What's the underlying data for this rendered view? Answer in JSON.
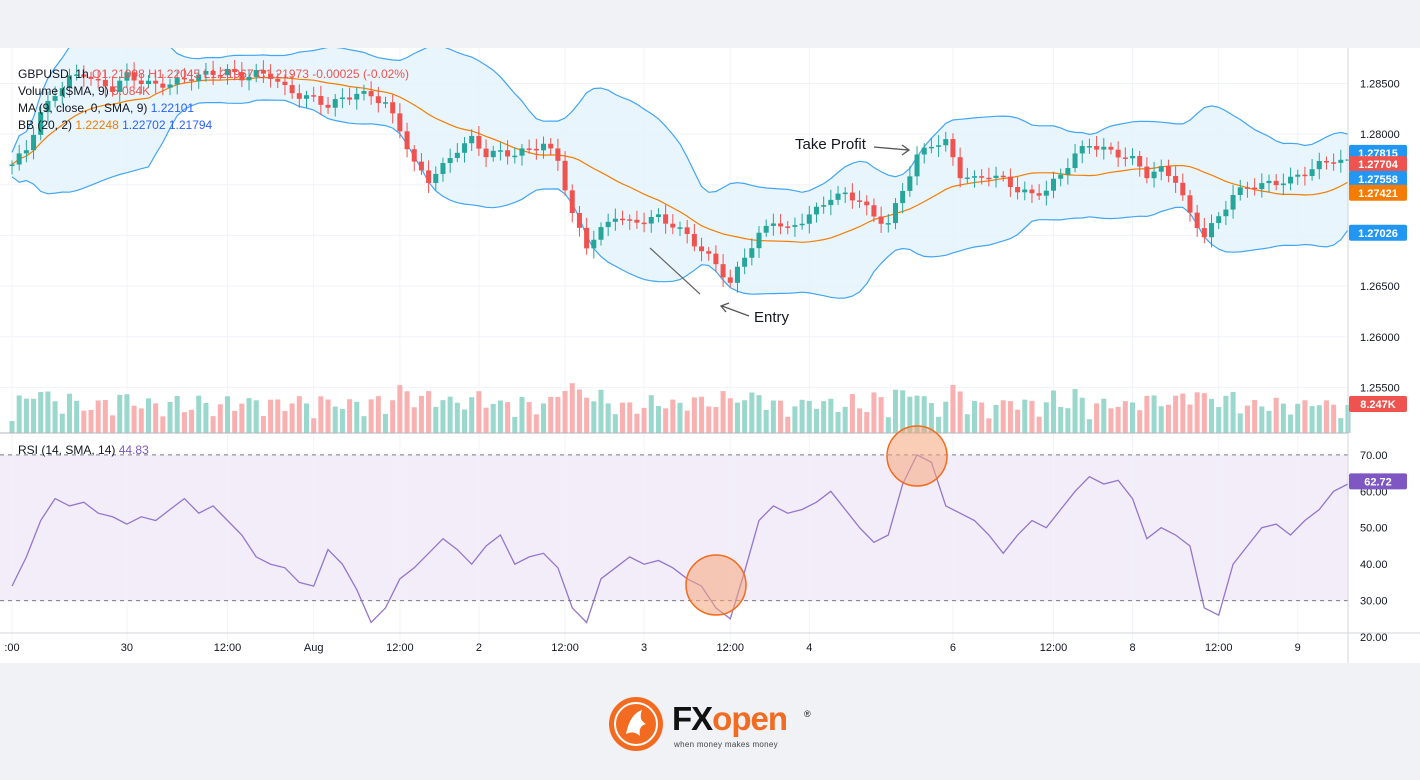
{
  "legend": {
    "symbol": "GBPUSD, 1h",
    "ohlc": "O1.21998 H1.22045 L1.21967 C1.21973 -0.00025 (-0.02%)",
    "volume": "Volume (SMA, 9)",
    "volume_value": "5.084K",
    "ma": "MA (9, close, 0, SMA, 9)",
    "ma_value": "1.22101",
    "bb": "BB (20, 2)",
    "bb_mid": "1.22248",
    "bb_up": "1.22702",
    "bb_low": "1.21794",
    "rsi": "RSI (14, SMA, 14)",
    "rsi_value": "44.83"
  },
  "annotations": {
    "take_profit": "Take Profit",
    "entry": "Entry"
  },
  "brand": {
    "name_a": "FX",
    "name_b": "open",
    "registered": "®",
    "tagline": "when money makes money"
  },
  "chart_data": [
    {
      "type": "candlestick",
      "title": "GBPUSD, 1h",
      "price_ticks": [
        "1.28500",
        "1.28000",
        "1.27500",
        "1.27000",
        "1.26500",
        "1.26000",
        "1.25500"
      ],
      "price_ticks_values": [
        1.285,
        1.28,
        1.275,
        1.27,
        1.265,
        1.26,
        1.255
      ],
      "ylim": [
        1.2505,
        1.2885
      ],
      "price_labels": [
        {
          "text": "1.27815",
          "value": 1.27815,
          "color": "#2196f3"
        },
        {
          "text": "1.27704",
          "value": 1.27704,
          "color": "#ef5350"
        },
        {
          "text": "1.27558",
          "value": 1.27558,
          "color": "#2196f3"
        },
        {
          "text": "1.27421",
          "value": 1.27421,
          "color": "#f57c00"
        },
        {
          "text": "1.27026",
          "value": 1.27026,
          "color": "#2196f3"
        }
      ],
      "volume_label": {
        "text": "8.247K",
        "color": "#ef5350"
      },
      "x_ticks": [
        ":00",
        "30",
        "12:00",
        "Aug",
        "12:00",
        "2",
        "12:00",
        "3",
        "12:00",
        "4",
        "6",
        "12:00",
        "8",
        "12:00",
        "9"
      ],
      "x_ticks_index": [
        0,
        16,
        30,
        42,
        54,
        65,
        77,
        88,
        100,
        111,
        131,
        145,
        156,
        168,
        179
      ],
      "bollinger": {
        "period": 20,
        "stddev": 2
      },
      "close_path": [
        [
          0,
          1.277
        ],
        [
          2,
          1.2785
        ],
        [
          4,
          1.282
        ],
        [
          6,
          1.284
        ],
        [
          8,
          1.2855
        ],
        [
          10,
          1.286
        ],
        [
          12,
          1.285
        ],
        [
          14,
          1.2845
        ],
        [
          16,
          1.2858
        ],
        [
          18,
          1.2852
        ],
        [
          20,
          1.2848
        ],
        [
          22,
          1.285
        ],
        [
          24,
          1.2854
        ],
        [
          26,
          1.2858
        ],
        [
          28,
          1.286
        ],
        [
          30,
          1.2862
        ],
        [
          32,
          1.2856
        ],
        [
          34,
          1.286
        ],
        [
          36,
          1.2858
        ],
        [
          38,
          1.2845
        ],
        [
          40,
          1.2838
        ],
        [
          42,
          1.2835
        ],
        [
          44,
          1.2828
        ],
        [
          46,
          1.2835
        ],
        [
          48,
          1.284
        ],
        [
          50,
          1.2838
        ],
        [
          52,
          1.283
        ],
        [
          54,
          1.2805
        ],
        [
          56,
          1.277
        ],
        [
          58,
          1.2755
        ],
        [
          60,
          1.2768
        ],
        [
          62,
          1.2785
        ],
        [
          64,
          1.2795
        ],
        [
          66,
          1.278
        ],
        [
          68,
          1.2782
        ],
        [
          70,
          1.278
        ],
        [
          72,
          1.2785
        ],
        [
          74,
          1.279
        ],
        [
          76,
          1.2775
        ],
        [
          78,
          1.272
        ],
        [
          80,
          1.269
        ],
        [
          82,
          1.2705
        ],
        [
          84,
          1.272
        ],
        [
          86,
          1.2712
        ],
        [
          88,
          1.2715
        ],
        [
          90,
          1.2718
        ],
        [
          92,
          1.271
        ],
        [
          94,
          1.27
        ],
        [
          96,
          1.2685
        ],
        [
          98,
          1.2672
        ],
        [
          100,
          1.2652
        ],
        [
          102,
          1.268
        ],
        [
          104,
          1.27
        ],
        [
          106,
          1.2715
        ],
        [
          108,
          1.2705
        ],
        [
          110,
          1.2715
        ],
        [
          112,
          1.2725
        ],
        [
          114,
          1.2738
        ],
        [
          116,
          1.274
        ],
        [
          118,
          1.2735
        ],
        [
          120,
          1.2718
        ],
        [
          122,
          1.2712
        ],
        [
          124,
          1.2745
        ],
        [
          126,
          1.2778
        ],
        [
          128,
          1.279
        ],
        [
          130,
          1.2792
        ],
        [
          132,
          1.276
        ],
        [
          134,
          1.2755
        ],
        [
          136,
          1.276
        ],
        [
          138,
          1.2755
        ],
        [
          140,
          1.2745
        ],
        [
          142,
          1.274
        ],
        [
          144,
          1.2745
        ],
        [
          146,
          1.276
        ],
        [
          148,
          1.278
        ],
        [
          150,
          1.279
        ],
        [
          152,
          1.2785
        ],
        [
          154,
          1.278
        ],
        [
          156,
          1.2775
        ],
        [
          158,
          1.276
        ],
        [
          160,
          1.2765
        ],
        [
          162,
          1.2755
        ],
        [
          164,
          1.272
        ],
        [
          166,
          1.27
        ],
        [
          168,
          1.2718
        ],
        [
          170,
          1.274
        ],
        [
          172,
          1.2748
        ],
        [
          174,
          1.275
        ],
        [
          176,
          1.2752
        ],
        [
          178,
          1.2755
        ],
        [
          180,
          1.2762
        ],
        [
          182,
          1.277
        ],
        [
          184,
          1.2775
        ],
        [
          186,
          1.2772
        ]
      ]
    },
    {
      "type": "line",
      "title": "RSI (14, SMA, 14)",
      "y_ticks": [
        "70.00",
        "60.00",
        "50.00",
        "40.00",
        "30.00",
        "20.00"
      ],
      "y_ticks_values": [
        70,
        60,
        50,
        40,
        30,
        20
      ],
      "ylim": [
        17,
        76
      ],
      "band": [
        30,
        70
      ],
      "current_label": {
        "text": "62.72",
        "value": 62.72,
        "color": "#7e57c2"
      },
      "x": [
        0,
        2,
        4,
        6,
        8,
        10,
        12,
        14,
        16,
        18,
        20,
        22,
        24,
        26,
        28,
        30,
        32,
        34,
        36,
        38,
        40,
        42,
        44,
        46,
        48,
        50,
        52,
        54,
        56,
        58,
        60,
        62,
        64,
        66,
        68,
        70,
        72,
        74,
        76,
        78,
        80,
        82,
        84,
        86,
        88,
        90,
        92,
        94,
        96,
        98,
        100,
        102,
        104,
        106,
        108,
        110,
        112,
        114,
        116,
        118,
        120,
        122,
        124,
        126,
        128,
        130,
        132,
        134,
        136,
        138,
        140,
        142,
        144,
        146,
        148,
        150,
        152,
        154,
        156,
        158,
        160,
        162,
        164,
        166,
        168,
        170,
        172,
        174,
        176,
        178,
        180,
        182,
        184,
        186
      ],
      "values": [
        34,
        42,
        52,
        58,
        56,
        57,
        54,
        53,
        51,
        53,
        52,
        55,
        58,
        54,
        56,
        52,
        48,
        42,
        40,
        39,
        35,
        34,
        44,
        40,
        33,
        24,
        28,
        36,
        39,
        43,
        47,
        44,
        40,
        45,
        48,
        40,
        42,
        43,
        39,
        28,
        24,
        36,
        39,
        42,
        40,
        41,
        39,
        36,
        34,
        28,
        25,
        38,
        52,
        56,
        54,
        55,
        57,
        60,
        55,
        50,
        46,
        48,
        62,
        70,
        68,
        56,
        54,
        52,
        48,
        43,
        48,
        52,
        50,
        55,
        60,
        64,
        62,
        63,
        58,
        47,
        50,
        48,
        45,
        28,
        26,
        40,
        45,
        50,
        51,
        48,
        52,
        55,
        60,
        62
      ]
    }
  ]
}
